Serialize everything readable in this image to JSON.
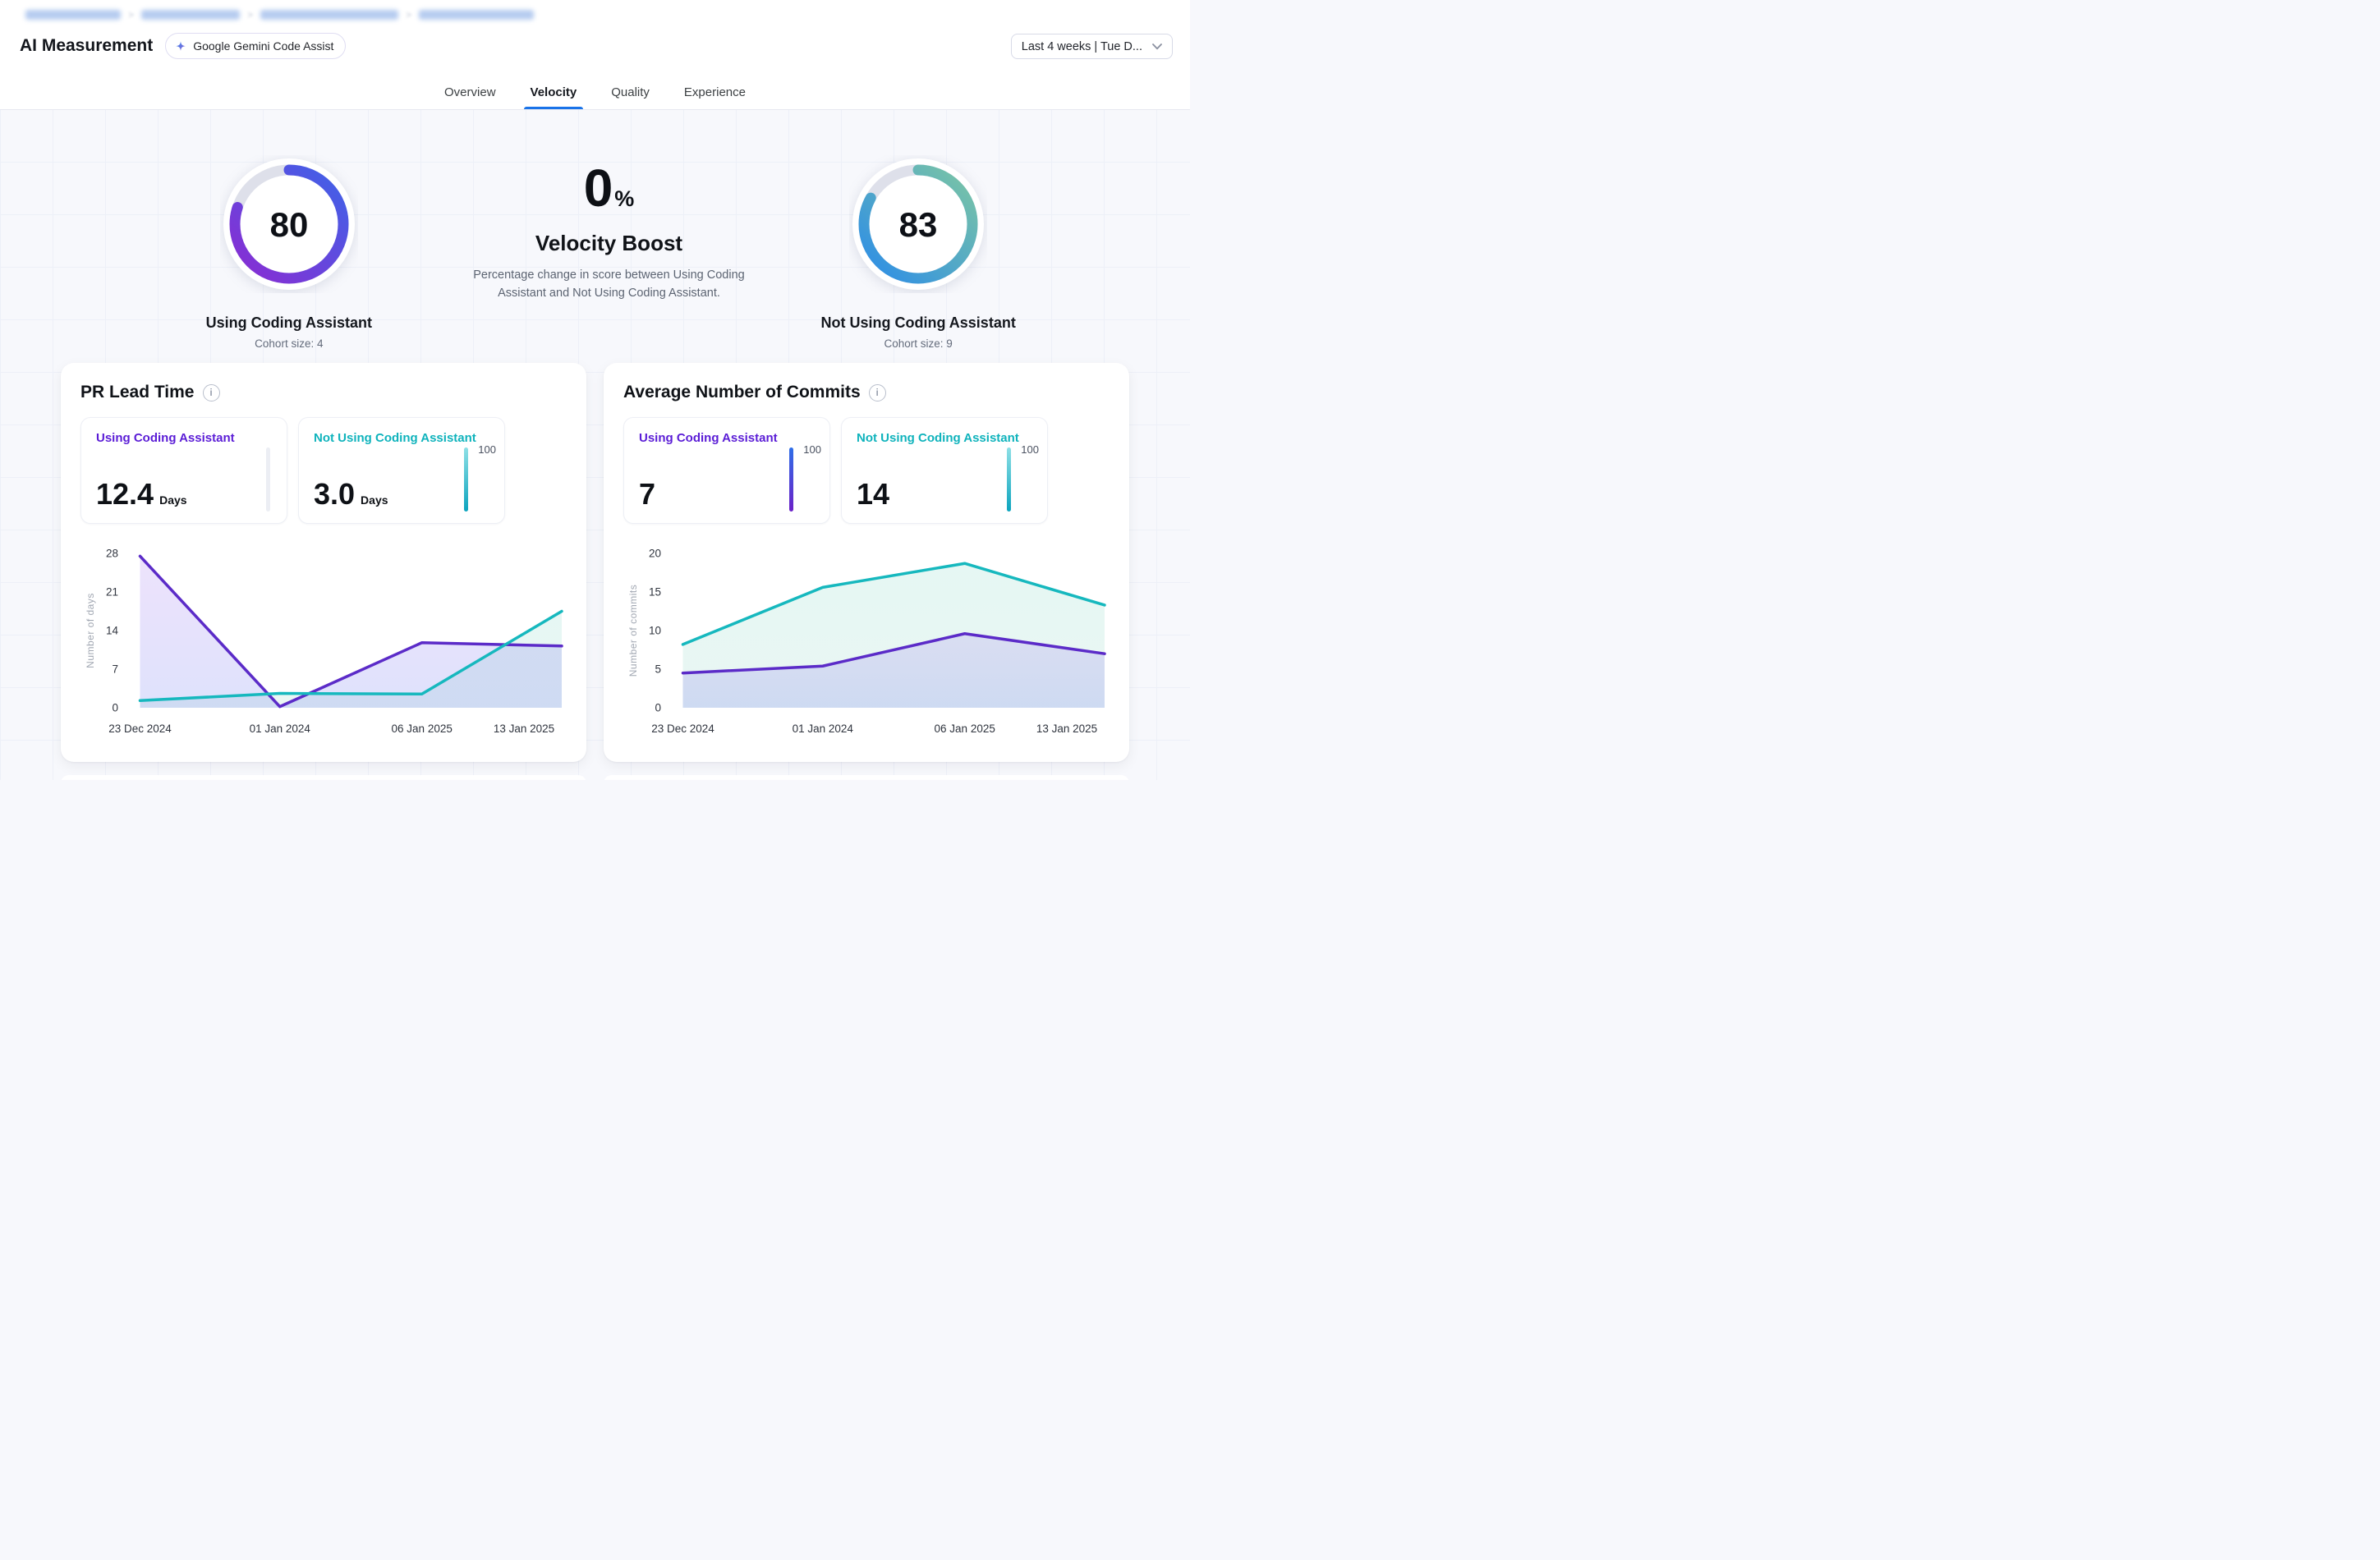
{
  "header": {
    "breadcrumb": {
      "redacted": true,
      "separator": ">",
      "segments": [
        {
          "width": 116
        },
        {
          "width": 120
        },
        {
          "width": 168
        },
        {
          "width": 140
        }
      ]
    },
    "title": "AI Measurement",
    "badge": {
      "icon": "gemini-star",
      "label": "Google Gemini Code Assist"
    },
    "date_filter": {
      "label": "Last 4 weeks  | Tue D...",
      "icon": "chevron-down"
    },
    "tabs": [
      {
        "label": "Overview",
        "active": false
      },
      {
        "label": "Velocity",
        "active": true
      },
      {
        "label": "Quality",
        "active": false
      },
      {
        "label": "Experience",
        "active": false
      }
    ],
    "accent_color": "#1A73E8"
  },
  "summary": {
    "gauges": [
      {
        "id": "using",
        "value": "80",
        "percent": 80,
        "label": "Using Coding Assistant",
        "cohort": "Cohort size: 4",
        "gradient": [
          "#8B2BD2",
          "#3E63E8"
        ],
        "track": "#DEE0EA"
      },
      {
        "id": "not-using",
        "value": "83",
        "percent": 83,
        "label": "Not Using Coding Assistant",
        "cohort": "Cohort size: 9",
        "gradient": [
          "#2B8CE8",
          "#7CC6A4"
        ],
        "track": "#DEE0EA"
      }
    ],
    "boost": {
      "value": "0",
      "unit": "%",
      "title": "Velocity Boost",
      "description": "Percentage change in score between Using Coding Assistant and Not Using Coding Assistant."
    }
  },
  "chart_data": [
    {
      "type": "area",
      "title": "PR Lead Time",
      "ylabel": "Number of days",
      "ylim": [
        0,
        28
      ],
      "yticks": [
        0,
        7,
        14,
        21,
        28
      ],
      "x": [
        "23 Dec 2024",
        "01 Jan 2024",
        "06 Jan 2025",
        "13 Jan 2025"
      ],
      "legend_position": "none",
      "grid": false,
      "series": [
        {
          "name": "Using Coding Assistant",
          "color": "#5B2BC8",
          "fill": {
            "from": "#7C3AED",
            "to": "#5B6CF0",
            "from_op": 0.14,
            "to_op": 0.2
          },
          "values": [
            27.5,
            0.2,
            11.8,
            11.2
          ]
        },
        {
          "name": "Not Using Coding Assistant",
          "color": "#16B8BE",
          "fill": {
            "from": "#2FBF9F",
            "to": "#7CC9B4",
            "from_op": 0.12,
            "to_op": 0.15
          },
          "values": [
            1.3,
            2.6,
            2.5,
            17.5
          ]
        }
      ],
      "stats": [
        {
          "label": "Using Coding Assistant",
          "color": "purple",
          "value": "12.4",
          "unit": "Days",
          "bar": "empty",
          "bar_label": ""
        },
        {
          "label": "Not Using Coding Assistant",
          "color": "teal",
          "value": "3.0",
          "unit": "Days",
          "bar": "teal",
          "bar_label": "100"
        }
      ]
    },
    {
      "type": "area",
      "title": "Average Number of Commits",
      "ylabel": "Number of commits",
      "ylim": [
        0,
        20
      ],
      "yticks": [
        0,
        5,
        10,
        15,
        20
      ],
      "x": [
        "23 Dec 2024",
        "01 Jan 2024",
        "06 Jan 2025",
        "13 Jan 2025"
      ],
      "legend_position": "none",
      "grid": false,
      "series": [
        {
          "name": "Using Coding Assistant",
          "color": "#5B2BC8",
          "fill": {
            "from": "#7C3AED",
            "to": "#5B6CF0",
            "from_op": 0.13,
            "to_op": 0.2
          },
          "values": [
            4.5,
            5.4,
            9.6,
            7.0
          ]
        },
        {
          "name": "Not Using Coding Assistant",
          "color": "#16B8BE",
          "fill": {
            "from": "#2FBF9F",
            "to": "#7CC9B4",
            "from_op": 0.12,
            "to_op": 0.16
          },
          "values": [
            8.2,
            15.6,
            18.7,
            13.3
          ]
        }
      ],
      "stats": [
        {
          "label": "Using Coding Assistant",
          "color": "purple",
          "value": "7",
          "unit": "",
          "bar": "purple",
          "bar_label": "100"
        },
        {
          "label": "Not Using Coding Assistant",
          "color": "teal",
          "value": "14",
          "unit": "",
          "bar": "teal",
          "bar_label": "100"
        }
      ]
    }
  ]
}
